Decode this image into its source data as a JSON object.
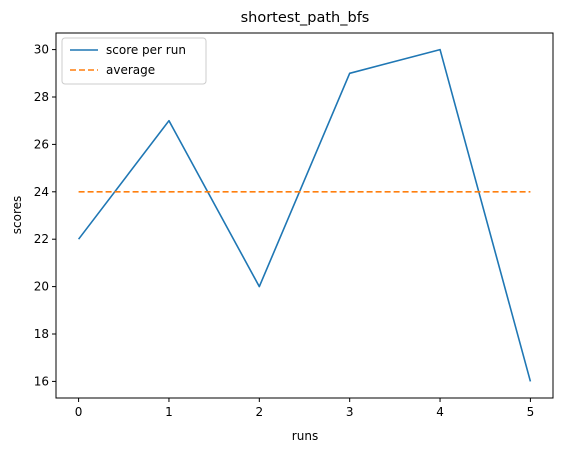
{
  "chart_data": {
    "type": "line",
    "title": "shortest_path_bfs",
    "xlabel": "runs",
    "ylabel": "scores",
    "x": [
      0,
      1,
      2,
      3,
      4,
      5
    ],
    "xlim": [
      -0.25,
      5.25
    ],
    "ylim": [
      15.3,
      30.7
    ],
    "xticks": [
      0,
      1,
      2,
      3,
      4,
      5
    ],
    "yticks": [
      16,
      18,
      20,
      22,
      24,
      26,
      28,
      30
    ],
    "grid": false,
    "legend_position": "top-left",
    "series": [
      {
        "name": "score per run",
        "values": [
          22,
          27,
          20,
          29,
          30,
          16
        ],
        "color": "#1f77b4",
        "style": "solid"
      },
      {
        "name": "average",
        "values": [
          24,
          24,
          24,
          24,
          24,
          24
        ],
        "color": "#ff7f0e",
        "style": "dashed"
      }
    ]
  }
}
